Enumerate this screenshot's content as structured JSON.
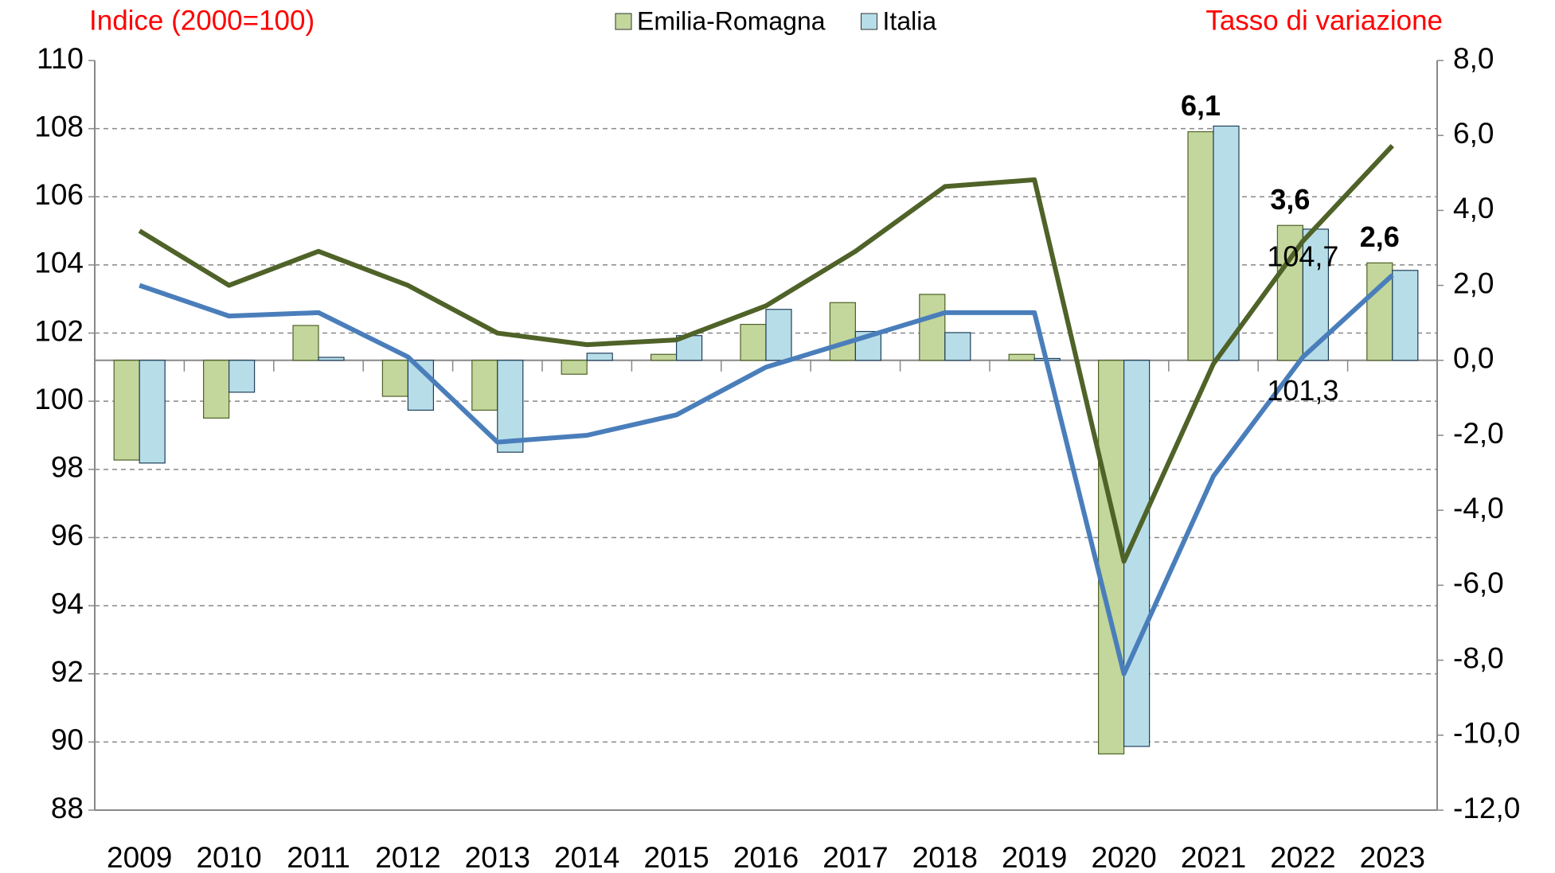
{
  "chart_data": {
    "type": "bar_line",
    "left_title": "Indice (2000=100)",
    "right_title": "Tasso di variazione",
    "categories": [
      "2009",
      "2010",
      "2011",
      "2012",
      "2013",
      "2014",
      "2015",
      "2016",
      "2017",
      "2018",
      "2019",
      "2020",
      "2021",
      "2022",
      "2023"
    ],
    "series": [
      {
        "name": "Emilia-Romagna",
        "color": "#c3d69b",
        "axis": "y2",
        "values": [
          -2.66,
          -1.54,
          0.93,
          -0.96,
          -1.33,
          -0.37,
          0.16,
          0.96,
          1.54,
          1.76,
          0.16,
          -10.5,
          6.1,
          3.6,
          2.6
        ],
        "value_labels": [
          null,
          null,
          null,
          null,
          null,
          null,
          null,
          null,
          null,
          null,
          null,
          null,
          "6,1",
          "3,6",
          "2,6"
        ]
      },
      {
        "name": "Italia",
        "color": "#b7dee8",
        "axis": "y2",
        "values": [
          -2.74,
          -0.85,
          0.08,
          -1.33,
          -2.45,
          0.19,
          0.66,
          1.36,
          0.77,
          0.74,
          0.05,
          -10.3,
          6.25,
          3.5,
          2.4
        ]
      }
    ],
    "lines": [
      {
        "color": "#4f6228",
        "values": [
          105.0,
          103.4,
          104.4,
          103.4,
          102.0,
          101.66,
          101.8,
          102.8,
          104.4,
          106.3,
          106.5,
          95.3,
          101.1,
          104.7,
          107.5
        ],
        "value_labels": [
          null,
          null,
          null,
          null,
          null,
          null,
          null,
          null,
          null,
          null,
          null,
          null,
          null,
          "104,7",
          null
        ]
      },
      {
        "color": "#4a7ebb",
        "values": [
          103.4,
          102.5,
          102.6,
          101.3,
          98.8,
          99.0,
          99.6,
          101.0,
          101.8,
          102.6,
          102.6,
          92.0,
          97.8,
          101.3,
          103.7
        ],
        "value_labels": [
          null,
          null,
          null,
          null,
          null,
          null,
          null,
          null,
          null,
          null,
          null,
          null,
          null,
          "101,3",
          null
        ]
      }
    ],
    "ylim": [
      88,
      110
    ],
    "yticks": [
      88,
      90,
      92,
      94,
      96,
      98,
      100,
      102,
      104,
      106,
      108,
      110
    ],
    "y2lim": [
      -12,
      8
    ],
    "y2ticks": [
      {
        "value": -12,
        "label": "-12,0"
      },
      {
        "value": -10,
        "label": "-10,0"
      },
      {
        "value": -8,
        "label": "-8,0"
      },
      {
        "value": -6,
        "label": "-6,0"
      },
      {
        "value": -4,
        "label": "-4,0"
      },
      {
        "value": -2,
        "label": "-2,0"
      },
      {
        "value": 0,
        "label": "0,0"
      },
      {
        "value": 2,
        "label": "2,0"
      },
      {
        "value": 4,
        "label": "4,0"
      },
      {
        "value": 6,
        "label": "6,0"
      },
      {
        "value": 8,
        "label": "8,0"
      }
    ],
    "grid": true
  }
}
